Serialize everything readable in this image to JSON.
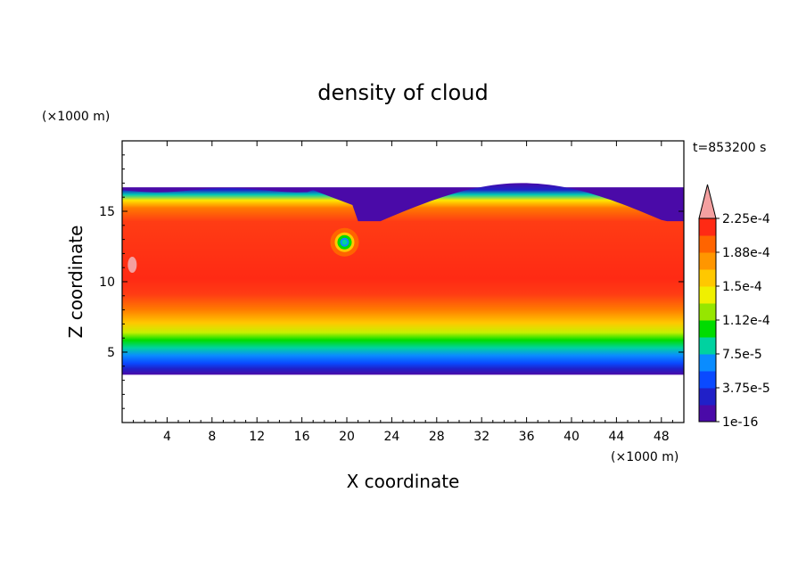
{
  "chart_data": {
    "type": "heatmap",
    "title": "density of cloud",
    "time_label": "t=853200 s",
    "xlabel": "X coordinate",
    "ylabel": "Z coordinate",
    "x_unit": "(×1000 m)",
    "y_unit": "(×1000 m)",
    "xlim": [
      0,
      50
    ],
    "ylim": [
      0,
      20
    ],
    "x_ticks": [
      4,
      8,
      12,
      16,
      20,
      24,
      28,
      32,
      36,
      40,
      44,
      48
    ],
    "y_ticks": [
      5,
      10,
      15
    ],
    "cloud_band": {
      "base_z": 3.4,
      "top_z_left": 16.5,
      "top_z_center_dip": 14.3,
      "top_z_dome_peak": 17.0,
      "vortex_center": [
        19.8,
        12.8
      ]
    },
    "colorbar": {
      "tick_labels": [
        "1e-16",
        "3.75e-5",
        "7.5e-5",
        "1.12e-4",
        "1.5e-4",
        "1.88e-4",
        "2.25e-4"
      ],
      "colors": [
        "#4a0aa8",
        "#2020c8",
        "#0a4aff",
        "#0a8cff",
        "#00d2a0",
        "#00dc00",
        "#96e600",
        "#f0f000",
        "#ffc800",
        "#ff9600",
        "#ff6400",
        "#ff2a14"
      ],
      "over_color": "#f4a0a0"
    }
  }
}
